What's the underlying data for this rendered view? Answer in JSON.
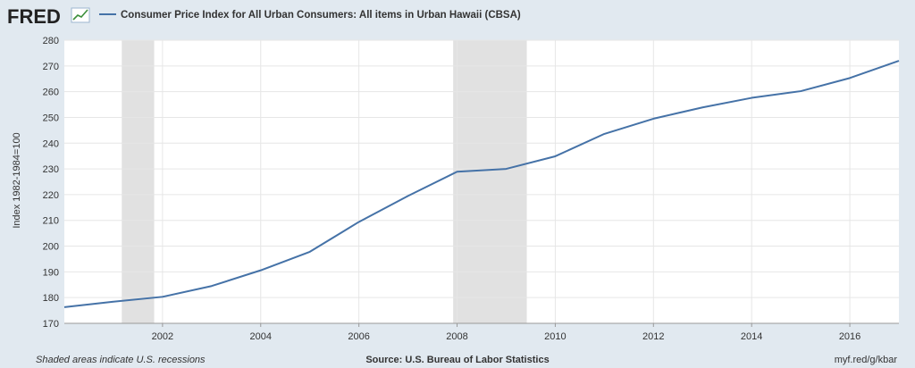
{
  "header": {
    "logo_text": "FRED",
    "logo_icon": "fred-chart-logo-icon"
  },
  "colors": {
    "background": "#e1e9f0",
    "plot_background": "#ffffff",
    "series_line": "#4572a7",
    "recession_shade": "#e1e1e1",
    "grid": "#e6e6e6"
  },
  "footer": {
    "recession_note": "Shaded areas indicate U.S. recessions",
    "source": "Source: U.S. Bureau of Labor Statistics",
    "url": "myf.red/g/kbar"
  },
  "chart_data": {
    "type": "line",
    "title": "",
    "xlabel": "",
    "ylabel": "Index 1982-1984=100",
    "ylim": [
      170,
      280
    ],
    "yticks": [
      170,
      180,
      190,
      200,
      210,
      220,
      230,
      240,
      250,
      260,
      270,
      280
    ],
    "xlim": [
      2000,
      2017
    ],
    "xticks": [
      2002,
      2004,
      2006,
      2008,
      2010,
      2012,
      2014,
      2016
    ],
    "grid": true,
    "legend_position": "top-left",
    "recessions": [
      {
        "start": 2001.17,
        "end": 2001.83
      },
      {
        "start": 2007.92,
        "end": 2009.42
      }
    ],
    "series": [
      {
        "name": "Consumer Price Index for All Urban Consumers: All items in Urban Hawaii (CBSA)",
        "x": [
          2000,
          2001,
          2002,
          2003,
          2004,
          2005,
          2006,
          2007,
          2008,
          2009,
          2010,
          2011,
          2012,
          2013,
          2014,
          2015,
          2016,
          2017
        ],
        "values": [
          176.3,
          178.4,
          180.3,
          184.5,
          190.6,
          197.8,
          209.4,
          219.5,
          228.9,
          230.0,
          234.9,
          243.6,
          249.5,
          253.9,
          257.6,
          260.2,
          265.3,
          272.0
        ]
      }
    ]
  }
}
